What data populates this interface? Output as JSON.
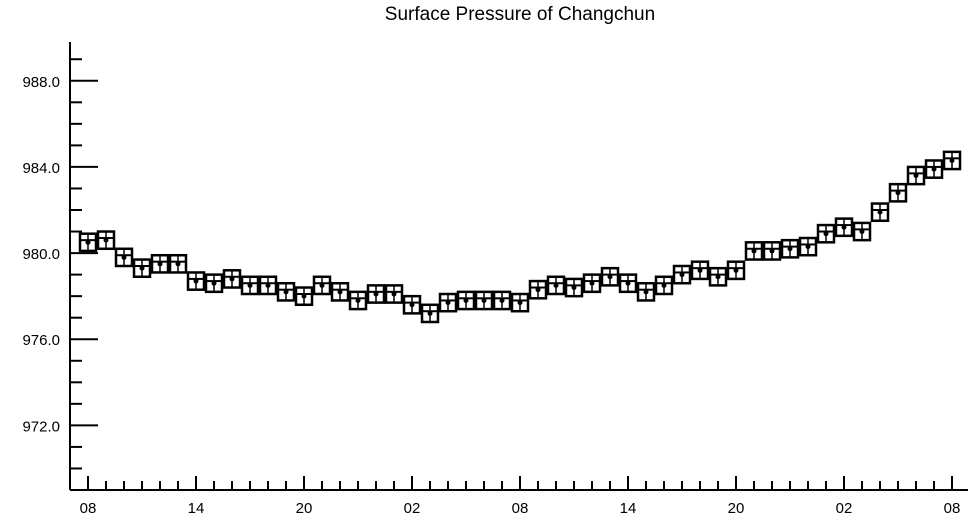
{
  "chart_data": {
    "type": "box",
    "title": "Surface Pressure of Changchun",
    "xlabel": "",
    "ylabel": "",
    "ylim": [
      969,
      989.8
    ],
    "y_ticks": [
      "972.0",
      "976.0",
      "980.0",
      "984.0",
      "988.0"
    ],
    "x_tick_labels": [
      "08",
      "14",
      "20",
      "02",
      "08",
      "14",
      "20",
      "02",
      "08"
    ],
    "x_unit": "hour",
    "step_hours": 1,
    "series": [
      {
        "values": [
          980.5,
          980.6,
          979.8,
          979.3,
          979.5,
          979.5,
          978.7,
          978.6,
          978.8,
          978.5,
          978.5,
          978.2,
          978.0,
          978.5,
          978.2,
          977.8,
          978.1,
          978.1,
          977.6,
          977.2,
          977.7,
          977.8,
          977.8,
          977.8,
          977.7,
          978.3,
          978.5,
          978.4,
          978.6,
          978.9,
          978.6,
          978.2,
          978.5,
          979.0,
          979.2,
          978.9,
          979.2,
          980.1,
          980.1,
          980.2,
          980.3,
          980.9,
          981.2,
          981.0,
          981.9,
          982.8,
          983.6,
          983.9,
          984.3
        ]
      }
    ],
    "grid": false,
    "legend": "none"
  }
}
